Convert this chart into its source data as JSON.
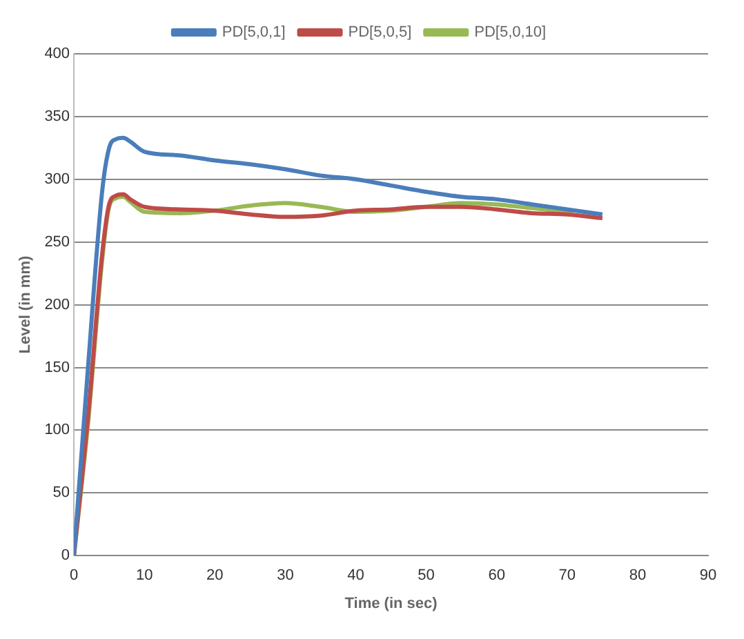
{
  "chart_data": {
    "type": "line",
    "xlabel": "Time (in sec)",
    "ylabel": "Level (in mm)",
    "xlim": [
      0,
      90
    ],
    "xticks": [
      0,
      10,
      20,
      30,
      40,
      50,
      60,
      70,
      80,
      90
    ],
    "ylim": [
      0,
      400
    ],
    "yticks": [
      0,
      50,
      100,
      150,
      200,
      250,
      300,
      350,
      400
    ],
    "grid": "y",
    "legend": "top",
    "marker": "none",
    "series": [
      {
        "name": "PD[5,0,1]",
        "color": "#4a7ebb",
        "x": [
          0,
          2,
          4,
          5,
          6,
          7,
          8,
          10,
          15,
          20,
          25,
          30,
          35,
          40,
          45,
          50,
          55,
          60,
          65,
          70,
          75
        ],
        "values": [
          0,
          150,
          290,
          325,
          332,
          333,
          330,
          322,
          319,
          315,
          312,
          308,
          303,
          300,
          295,
          290,
          286,
          284,
          280,
          276,
          272
        ]
      },
      {
        "name": "PD[5,0,5]",
        "color": "#be4b48",
        "x": [
          0,
          2,
          4,
          5,
          6,
          7,
          8,
          10,
          15,
          20,
          25,
          30,
          35,
          40,
          45,
          50,
          55,
          60,
          65,
          70,
          75
        ],
        "values": [
          0,
          110,
          240,
          280,
          287,
          288,
          284,
          278,
          276,
          275,
          272,
          270,
          271,
          275,
          276,
          278,
          278,
          276,
          273,
          272,
          269
        ]
      },
      {
        "name": "PD[5,0,10]",
        "color": "#98b954",
        "x": [
          0,
          2,
          4,
          5,
          6,
          7,
          8,
          10,
          15,
          20,
          25,
          30,
          35,
          40,
          45,
          50,
          55,
          60,
          65,
          70,
          71
        ],
        "values": [
          0,
          105,
          235,
          278,
          285,
          286,
          282,
          274,
          273,
          275,
          279,
          281,
          278,
          274,
          275,
          278,
          281,
          280,
          277,
          275,
          275
        ]
      }
    ]
  }
}
